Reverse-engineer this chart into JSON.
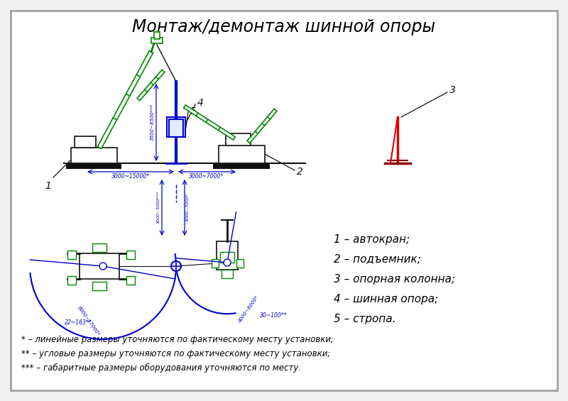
{
  "title": "Монтаж/демонтаж шинной опоры",
  "title_fontsize": 17,
  "bg_color": "#f0f0f0",
  "border_color": "#999999",
  "legend_items": [
    "1 – автокран;",
    "2 – подъемник;",
    "3 – опорная колонна;",
    "4 – шинная опора;",
    "5 – стропа."
  ],
  "footnotes": [
    "* – линейные размеры уточняются по фактическому месту установки;",
    "** – угловые размеры уточняются по фактическому месту установки;",
    "*** – габаритные размеры оборудования уточняются по месту."
  ],
  "green_color": "#008800",
  "blue_color": "#0000cc",
  "dark_color": "#111111",
  "red_color": "#dd0000",
  "dark_red_color": "#880000",
  "gray_color": "#555555"
}
